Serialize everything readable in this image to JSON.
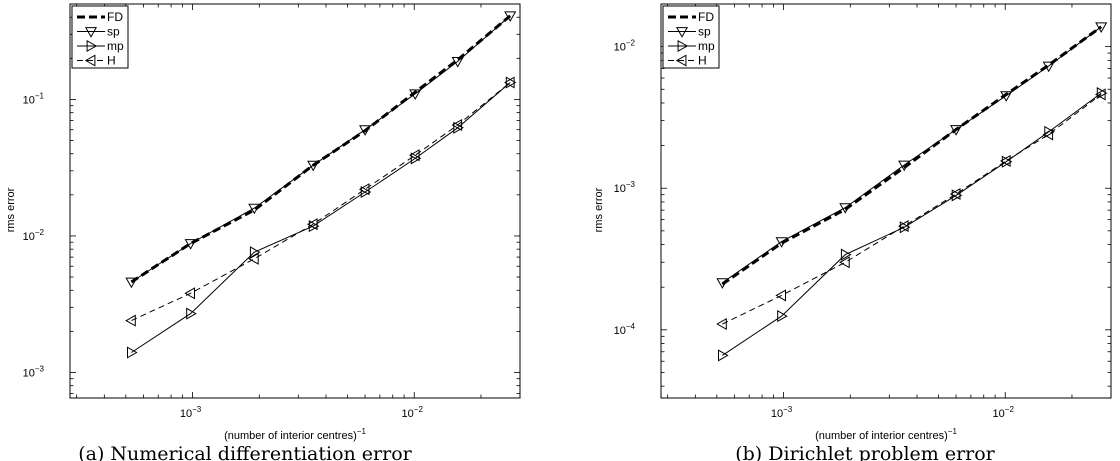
{
  "chart_data": [
    {
      "type": "line",
      "caption": "(a) Numerical differentiation error",
      "xlabel": "(number of interior centres)",
      "xlabel_exponent": "−1",
      "ylabel": "rms error",
      "xscale": "log",
      "yscale": "log",
      "xlim": [
        0.00028,
        0.03
      ],
      "ylim": [
        0.00065,
        0.5
      ],
      "xticks": [
        {
          "value": 0.001,
          "base": "10",
          "exp": "−3"
        },
        {
          "value": 0.01,
          "base": "10",
          "exp": "−2"
        }
      ],
      "yticks": [
        {
          "value": 0.001,
          "base": "10",
          "exp": "−3"
        },
        {
          "value": 0.01,
          "base": "10",
          "exp": "−2"
        },
        {
          "value": 0.1,
          "base": "10",
          "exp": "−1"
        }
      ],
      "legend_position": "top-left",
      "series": [
        {
          "name": "FD",
          "style": "thick-dashed",
          "marker": "none",
          "x": [
            0.00053,
            0.00098,
            0.0019,
            0.0035,
            0.006,
            0.0101,
            0.0157,
            0.0271
          ],
          "y": [
            0.0046,
            0.0088,
            0.0155,
            0.033,
            0.059,
            0.113,
            0.195,
            0.41
          ]
        },
        {
          "name": "sp",
          "style": "solid",
          "marker": "triangle-down",
          "x": [
            0.00053,
            0.00098,
            0.0019,
            0.0035,
            0.006,
            0.0101,
            0.0157,
            0.0271
          ],
          "y": [
            0.0046,
            0.0088,
            0.016,
            0.033,
            0.06,
            0.11,
            0.19,
            0.41
          ]
        },
        {
          "name": "mp",
          "style": "solid",
          "marker": "triangle-right",
          "x": [
            0.00053,
            0.00098,
            0.0019,
            0.0035,
            0.006,
            0.0101,
            0.0157,
            0.0271
          ],
          "y": [
            0.0014,
            0.0027,
            0.0076,
            0.0118,
            0.021,
            0.037,
            0.062,
            0.133
          ]
        },
        {
          "name": "H",
          "style": "dashed",
          "marker": "triangle-left",
          "x": [
            0.00053,
            0.00098,
            0.0019,
            0.0035,
            0.006,
            0.0101,
            0.0157,
            0.0271
          ],
          "y": [
            0.0024,
            0.0038,
            0.0068,
            0.0122,
            0.022,
            0.039,
            0.065,
            0.133
          ]
        }
      ]
    },
    {
      "type": "line",
      "caption": "(b) Dirichlet problem error",
      "xlabel": "(number of interior centres)",
      "xlabel_exponent": "−1",
      "ylabel": "rms error",
      "xscale": "log",
      "yscale": "log",
      "xlim": [
        0.00028,
        0.03
      ],
      "ylim": [
        3.3e-05,
        0.02
      ],
      "xticks": [
        {
          "value": 0.001,
          "base": "10",
          "exp": "−3"
        },
        {
          "value": 0.01,
          "base": "10",
          "exp": "−2"
        }
      ],
      "yticks": [
        {
          "value": 0.0001,
          "base": "10",
          "exp": "−4"
        },
        {
          "value": 0.001,
          "base": "10",
          "exp": "−3"
        },
        {
          "value": 0.01,
          "base": "10",
          "exp": "−2"
        }
      ],
      "legend_position": "top-left",
      "series": [
        {
          "name": "FD",
          "style": "thick-dashed",
          "marker": "none",
          "x": [
            0.00053,
            0.00098,
            0.0019,
            0.0035,
            0.006,
            0.0101,
            0.0157,
            0.0271
          ],
          "y": [
            0.00021,
            0.00041,
            0.00071,
            0.0014,
            0.0026,
            0.0046,
            0.0074,
            0.0138
          ]
        },
        {
          "name": "sp",
          "style": "solid",
          "marker": "triangle-down",
          "x": [
            0.00053,
            0.00098,
            0.0019,
            0.0035,
            0.006,
            0.0101,
            0.0157,
            0.0271
          ],
          "y": [
            0.000215,
            0.00042,
            0.00073,
            0.00146,
            0.0026,
            0.0045,
            0.0073,
            0.0138
          ]
        },
        {
          "name": "mp",
          "style": "solid",
          "marker": "triangle-right",
          "x": [
            0.00053,
            0.00098,
            0.0019,
            0.0035,
            0.006,
            0.0101,
            0.0157,
            0.0271
          ],
          "y": [
            6.6e-05,
            0.000125,
            0.00034,
            0.00053,
            0.00089,
            0.00154,
            0.0025,
            0.0047
          ]
        },
        {
          "name": "H",
          "style": "dashed",
          "marker": "triangle-left",
          "x": [
            0.00053,
            0.00098,
            0.0019,
            0.0035,
            0.006,
            0.0101,
            0.0157,
            0.0271
          ],
          "y": [
            0.00011,
            0.000175,
            0.0003,
            0.00054,
            0.00091,
            0.00156,
            0.0024,
            0.0046
          ]
        }
      ]
    }
  ]
}
